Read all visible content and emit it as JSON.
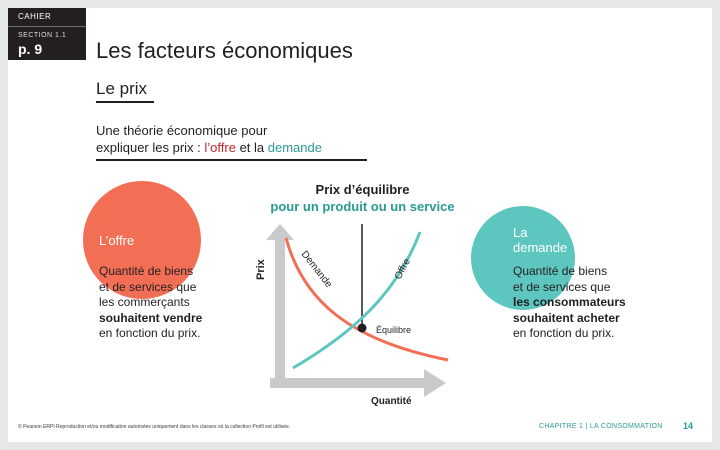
{
  "header": {
    "cahier": "CAHIER",
    "section": "SECTION 1.1",
    "page": "p. 9",
    "title": "Les facteurs économiques",
    "subtitle": "Le prix"
  },
  "intro": {
    "line1": "Une théorie économique pour",
    "line2_prefix": "expliquer les prix : ",
    "offre": "l’offre",
    "et_la": " et la ",
    "demande": "demande"
  },
  "equilibrium": {
    "line1": "Prix d’équilibre",
    "line2": "pour un produit ou un service"
  },
  "left": {
    "circle_label": "L’offre",
    "desc_line1": "Quantité de biens",
    "desc_line2": "et de services que",
    "desc_line3": "les commerçants",
    "desc_line4": "souhaitent vendre",
    "desc_line5": "en fonction du prix."
  },
  "right": {
    "circle_label_1": "La",
    "circle_label_2": "demande",
    "desc_line1": "Quantité de biens",
    "desc_line2": "et de services que",
    "desc_line3": "les consommateurs",
    "desc_line4": "souhaitent acheter",
    "desc_line5": "en fonction du prix."
  },
  "graph": {
    "y_label": "Prix",
    "x_label": "Quantité",
    "demand_label": "Demande",
    "supply_label": "Offre",
    "equilibrium_label": "Équilibre"
  },
  "footer": {
    "copyright": "© Pearson ERPI  Reproduction et/ou modification autorisées uniquement dans les classes où la collection Profil est utilisée.",
    "chapter": "CHAPITRE 1 | LA CONSOMMATION",
    "page_number": "14"
  },
  "colors": {
    "offre": "#f26f56",
    "demande": "#5dc6bf",
    "accent_red": "#c1272d",
    "accent_teal": "#2a9a95",
    "axis_gray": "#c9cacc"
  }
}
